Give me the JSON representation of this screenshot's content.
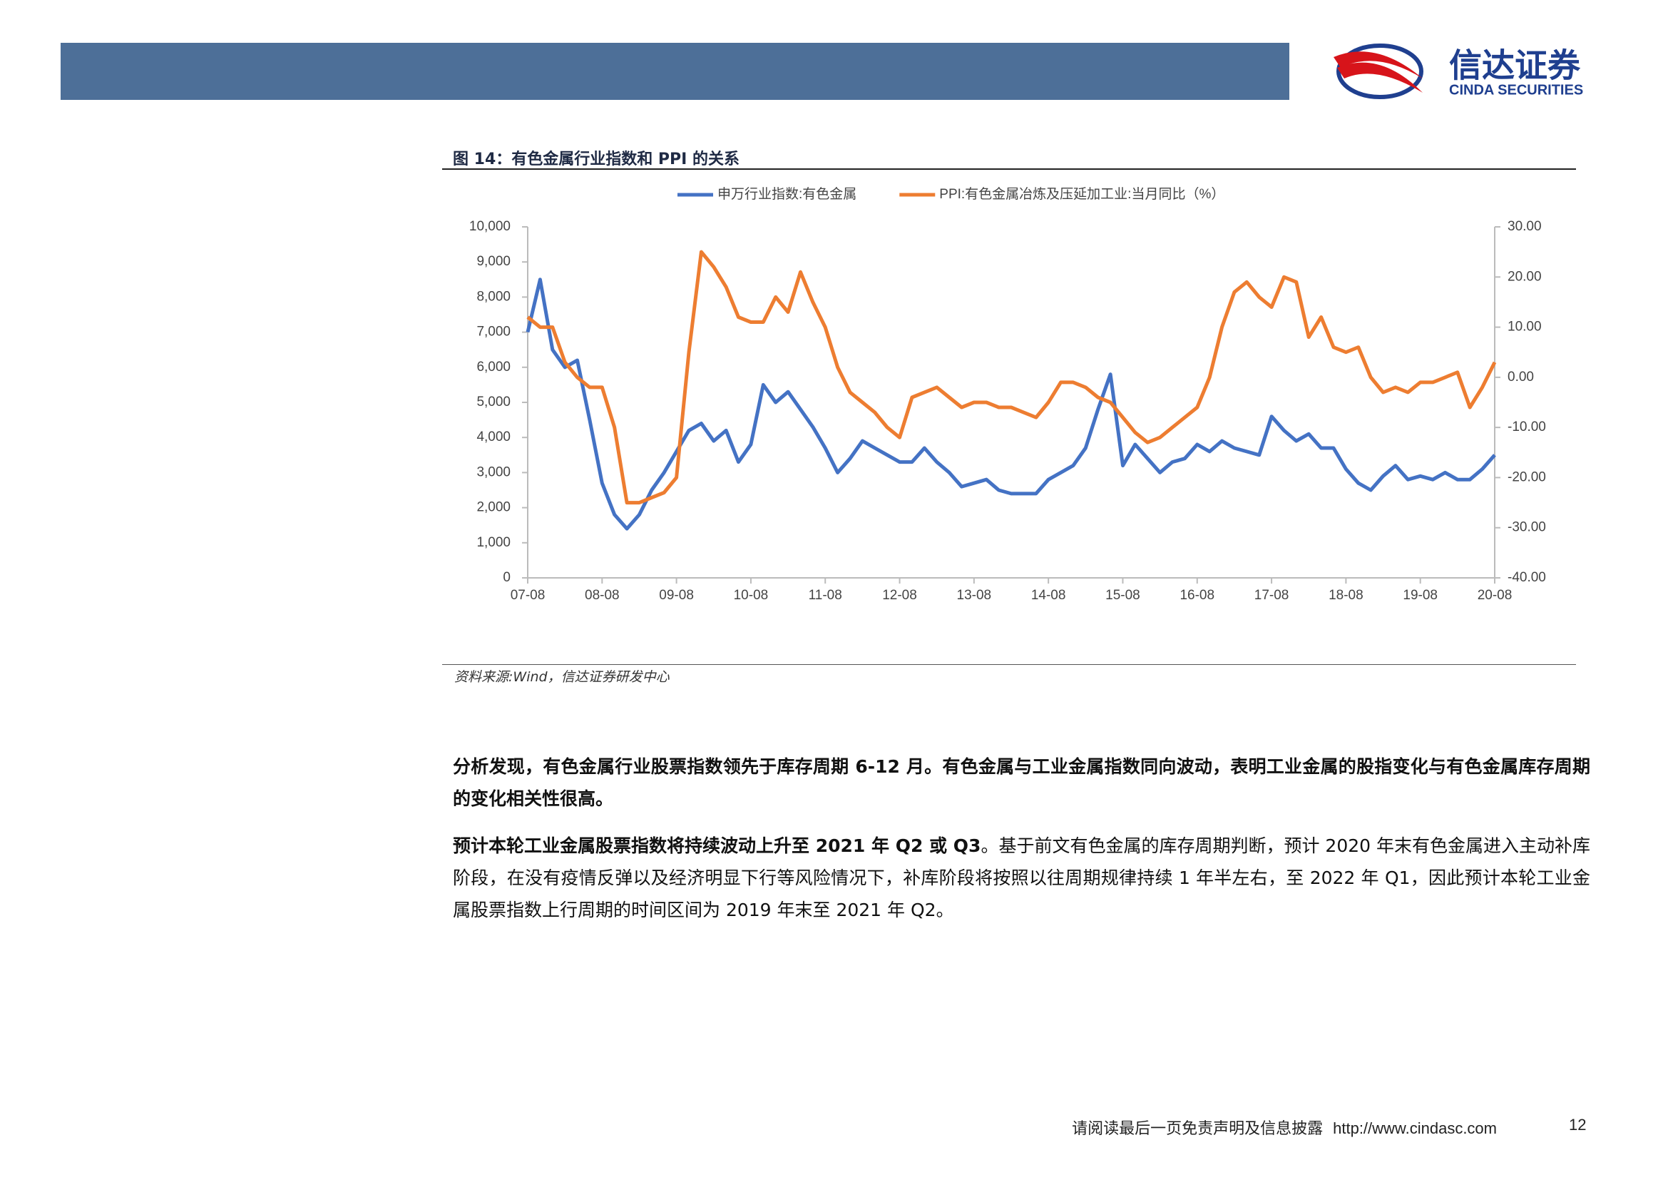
{
  "header": {
    "logo_cn": "信达证券",
    "logo_en": "CINDA SECURITIES"
  },
  "figure": {
    "caption": "图 14：有色金属行业指数和 PPI 的关系",
    "source": "资料来源:Wind，信达证券研发中心"
  },
  "chart_data": {
    "type": "line",
    "categories": [
      "07-08",
      null,
      null,
      null,
      null,
      null,
      "08-08",
      null,
      null,
      null,
      null,
      null,
      "09-08",
      null,
      null,
      null,
      null,
      null,
      "10-08",
      null,
      null,
      null,
      null,
      null,
      "11-08",
      null,
      null,
      null,
      null,
      null,
      "12-08",
      null,
      null,
      null,
      null,
      null,
      "13-08",
      null,
      null,
      null,
      null,
      null,
      "14-08",
      null,
      null,
      null,
      null,
      null,
      "15-08",
      null,
      null,
      null,
      null,
      null,
      "16-08",
      null,
      null,
      null,
      null,
      null,
      "17-08",
      null,
      null,
      null,
      null,
      null,
      "18-08",
      null,
      null,
      null,
      null,
      null,
      "19-08",
      null,
      null,
      null,
      null,
      null,
      "20-08"
    ],
    "series": [
      {
        "name": "申万行业指数:有色金属",
        "color": "#4472c4",
        "values": [
          7000,
          8500,
          6500,
          6000,
          6200,
          4500,
          2700,
          1800,
          1400,
          1800,
          2500,
          3000,
          3600,
          4200,
          4400,
          3900,
          4200,
          3300,
          3800,
          5500,
          5000,
          5300,
          4800,
          4300,
          3700,
          3000,
          3400,
          3900,
          3700,
          3500,
          3300,
          3300,
          3700,
          3300,
          3000,
          2600,
          2700,
          2800,
          2500,
          2400,
          2400,
          2400,
          2800,
          3000,
          3200,
          3700,
          4800,
          5800,
          3200,
          3800,
          3400,
          3000,
          3300,
          3400,
          3800,
          3600,
          3900,
          3700,
          3600,
          3500,
          4600,
          4200,
          3900,
          4100,
          3700,
          3700,
          3100,
          2700,
          2500,
          2900,
          3200,
          2800,
          2900,
          2800,
          3000,
          2800,
          2800,
          3100,
          3500
        ]
      },
      {
        "name": "PPI:有色金属冶炼及压延加工业:当月同比（%）",
        "color": "#ed7d31",
        "axis": "y2",
        "values": [
          12,
          10,
          10,
          3,
          0,
          -2,
          -2,
          -10,
          -25,
          -25,
          -24,
          -23,
          -20,
          5,
          25,
          22,
          18,
          12,
          11,
          11,
          16,
          13,
          21,
          15,
          10,
          2,
          -3,
          -5,
          -7,
          -10,
          -12,
          -4,
          -3,
          -2,
          -4,
          -6,
          -5,
          -5,
          -6,
          -6,
          -7,
          -8,
          -5,
          -1,
          -1,
          -2,
          -4,
          -5,
          -8,
          -11,
          -13,
          -12,
          -10,
          -8,
          -6,
          0,
          10,
          17,
          19,
          16,
          14,
          20,
          19,
          8,
          12,
          6,
          5,
          6,
          0,
          -3,
          -2,
          -3,
          -1,
          -1,
          0,
          1,
          -6,
          -2,
          3
        ]
      }
    ],
    "ylim": [
      0,
      10000
    ],
    "yticks": [
      0,
      {
        "value": 1000,
        "label": "1,000"
      },
      {
        "value": 2000,
        "label": "2,000"
      },
      {
        "value": 3000,
        "label": "3,000"
      },
      {
        "value": 4000,
        "label": "4,000"
      },
      {
        "value": 5000,
        "label": "5,000"
      },
      {
        "value": 6000,
        "label": "6,000"
      },
      {
        "value": 7000,
        "label": "7,000"
      },
      {
        "value": 8000,
        "label": "8,000"
      },
      {
        "value": 9000,
        "label": "9,000"
      },
      {
        "value": 10000,
        "label": "10,000"
      }
    ],
    "y2lim": [
      -40,
      30
    ],
    "y2ticks": [
      {
        "value": -40,
        "label": "-40.00"
      },
      {
        "value": -30,
        "label": "-30.00"
      },
      {
        "value": -20,
        "label": "-20.00"
      },
      {
        "value": -10,
        "label": "-10.00"
      },
      {
        "value": 0,
        "label": "0.00"
      },
      {
        "value": 10,
        "label": "10.00"
      },
      {
        "value": 20,
        "label": "20.00"
      },
      {
        "value": 30,
        "label": "30.00"
      }
    ],
    "legend": "top"
  },
  "paragraphs": [
    {
      "bold": "分析发现，有色金属行业股票指数领先于库存周期 6-12 月。有色金属与工业金属指数同向波动，表明工业金属的股指变化与有色金属库存周期的变化相关性很高。"
    },
    {
      "bold": "预计本轮工业金属股票指数将持续波动上升至 2021 年 Q2 或 Q3",
      "text": "。基于前文有色金属的库存周期判断，预计 2020 年末有色金属进入主动补库阶段，在没有疫情反弹以及经济明显下行等风险情况下，补库阶段将按照以往周期规律持续 1 年半左右，至 2022 年 Q1，因此预计本轮工业金属股票指数上行周期的时间区间为 2019 年末至 2021 年 Q2。"
    }
  ],
  "footer": {
    "disclaimer": "请阅读最后一页免责声明及信息披露",
    "url": "http://www.cindasc.com",
    "page": "12"
  }
}
